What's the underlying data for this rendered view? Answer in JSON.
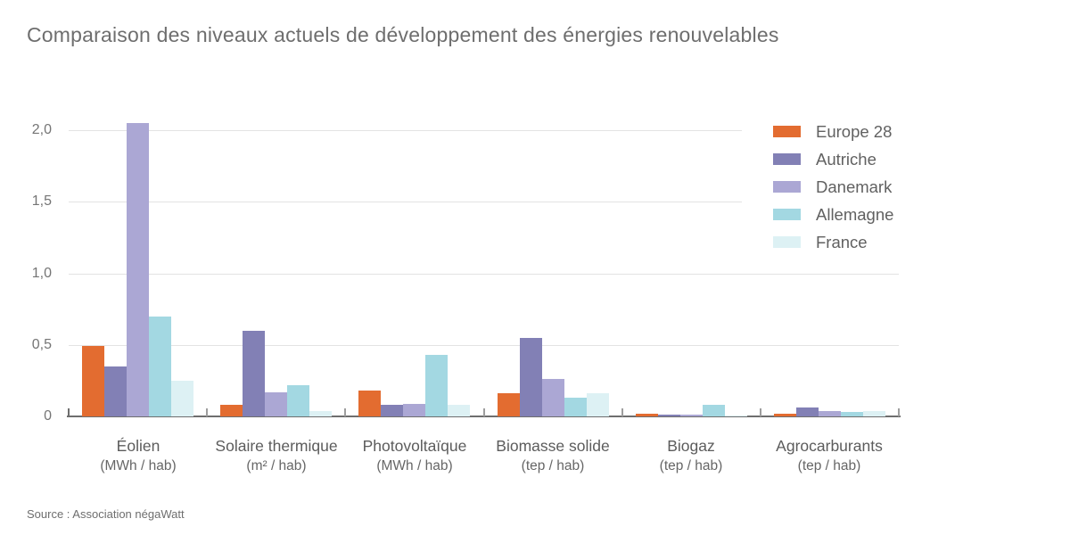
{
  "title": "Comparaison des niveaux actuels de développement des énergies renouvelables",
  "source": "Source : Association négaWatt",
  "colors": {
    "europe28": "#E36C30",
    "autriche": "#8280B5",
    "danemark": "#ABA7D4",
    "allemagne": "#A3D8E2",
    "france": "#DDF1F4",
    "gridline": "#e3e3e3",
    "axis": "#6e6e6e",
    "text": "#6e6e6e"
  },
  "chart_data": {
    "type": "bar",
    "title": "Comparaison des niveaux actuels de développement des énergies renouvelables",
    "categories": [
      "Éolien",
      "Solaire thermique",
      "Photovoltaïque",
      "Biomasse solide",
      "Biogaz",
      "Agrocarburants"
    ],
    "category_units": [
      "(MWh / hab)",
      "(m² / hab)",
      "(MWh / hab)",
      "(tep / hab)",
      "(tep / hab)",
      "(tep / hab)"
    ],
    "series": [
      {
        "name": "Europe 28",
        "color": "#E36C30",
        "values": [
          0.49,
          0.08,
          0.18,
          0.16,
          0.02,
          0.02
        ]
      },
      {
        "name": "Autriche",
        "color": "#8280B5",
        "values": [
          0.35,
          0.6,
          0.08,
          0.55,
          0.015,
          0.06
        ]
      },
      {
        "name": "Danemark",
        "color": "#ABA7D4",
        "values": [
          2.05,
          0.17,
          0.09,
          0.26,
          0.01,
          0.04
        ]
      },
      {
        "name": "Allemagne",
        "color": "#A3D8E2",
        "values": [
          0.7,
          0.22,
          0.43,
          0.13,
          0.08,
          0.03
        ]
      },
      {
        "name": "France",
        "color": "#DDF1F4",
        "values": [
          0.25,
          0.04,
          0.08,
          0.16,
          0.005,
          0.04
        ]
      }
    ],
    "yticks": [
      "0",
      "0,5",
      "1,0",
      "1,5",
      "2,0"
    ],
    "ytick_values": [
      0,
      0.5,
      1.0,
      1.5,
      2.0
    ],
    "ylim": [
      0,
      2.0
    ],
    "grid": true,
    "legend_position": "top-right"
  }
}
